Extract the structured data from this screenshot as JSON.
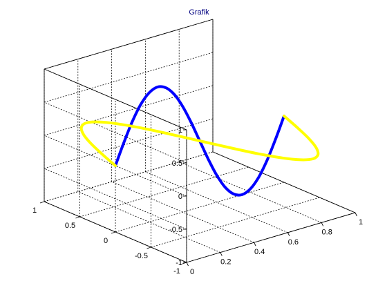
{
  "chart_data": {
    "type": "line",
    "title": "Grafik",
    "xlabel": "",
    "ylabel": "",
    "zlabel": "",
    "xlim": [
      0,
      1
    ],
    "ylim": [
      -1,
      1
    ],
    "zlim": [
      -1,
      1
    ],
    "x_ticks": [
      "0",
      "0.2",
      "0.4",
      "0.6",
      "0.8",
      "1"
    ],
    "y_ticks": [
      "-1",
      "-0.5",
      "0",
      "0.5",
      "1"
    ],
    "z_ticks": [
      "-1",
      "-0.5",
      "0",
      "0.5",
      "1"
    ],
    "grid": true,
    "box": true,
    "series": [
      {
        "color": "#0000ff",
        "line_width": 4,
        "x": [
          0,
          0.05,
          0.1,
          0.15,
          0.2,
          0.25,
          0.3,
          0.35,
          0.4,
          0.45,
          0.5,
          0.55,
          0.6,
          0.65,
          0.7,
          0.75,
          0.8,
          0.85,
          0.9,
          0.95,
          1
        ],
        "y": [
          0,
          0,
          0,
          0,
          0,
          0,
          0,
          0,
          0,
          0,
          0,
          0,
          0,
          0,
          0,
          0,
          0,
          0,
          0,
          0,
          0
        ],
        "z": [
          0,
          0.31,
          0.59,
          0.81,
          0.95,
          1,
          0.95,
          0.81,
          0.59,
          0.31,
          0,
          -0.31,
          -0.59,
          -0.81,
          -0.95,
          -1,
          -0.95,
          -0.81,
          -0.59,
          -0.31,
          0
        ]
      },
      {
        "color": "#ffff00",
        "line_width": 4,
        "x": [
          0,
          0.05,
          0.1,
          0.15,
          0.2,
          0.25,
          0.3,
          0.35,
          0.4,
          0.45,
          0.5,
          0.55,
          0.6,
          0.65,
          0.7,
          0.75,
          0.8,
          0.85,
          0.9,
          0.95,
          1
        ],
        "y": [
          0,
          0.31,
          0.59,
          0.81,
          0.95,
          1,
          0.95,
          0.81,
          0.59,
          0.31,
          0,
          -0.31,
          -0.59,
          -0.81,
          -0.95,
          -1,
          -0.95,
          -0.81,
          -0.59,
          -0.31,
          0
        ],
        "z": [
          0,
          0,
          0,
          0,
          0,
          0,
          0,
          0,
          0,
          0,
          0,
          0,
          0,
          0,
          0,
          0,
          0,
          0,
          0,
          0,
          0
        ]
      }
    ]
  }
}
